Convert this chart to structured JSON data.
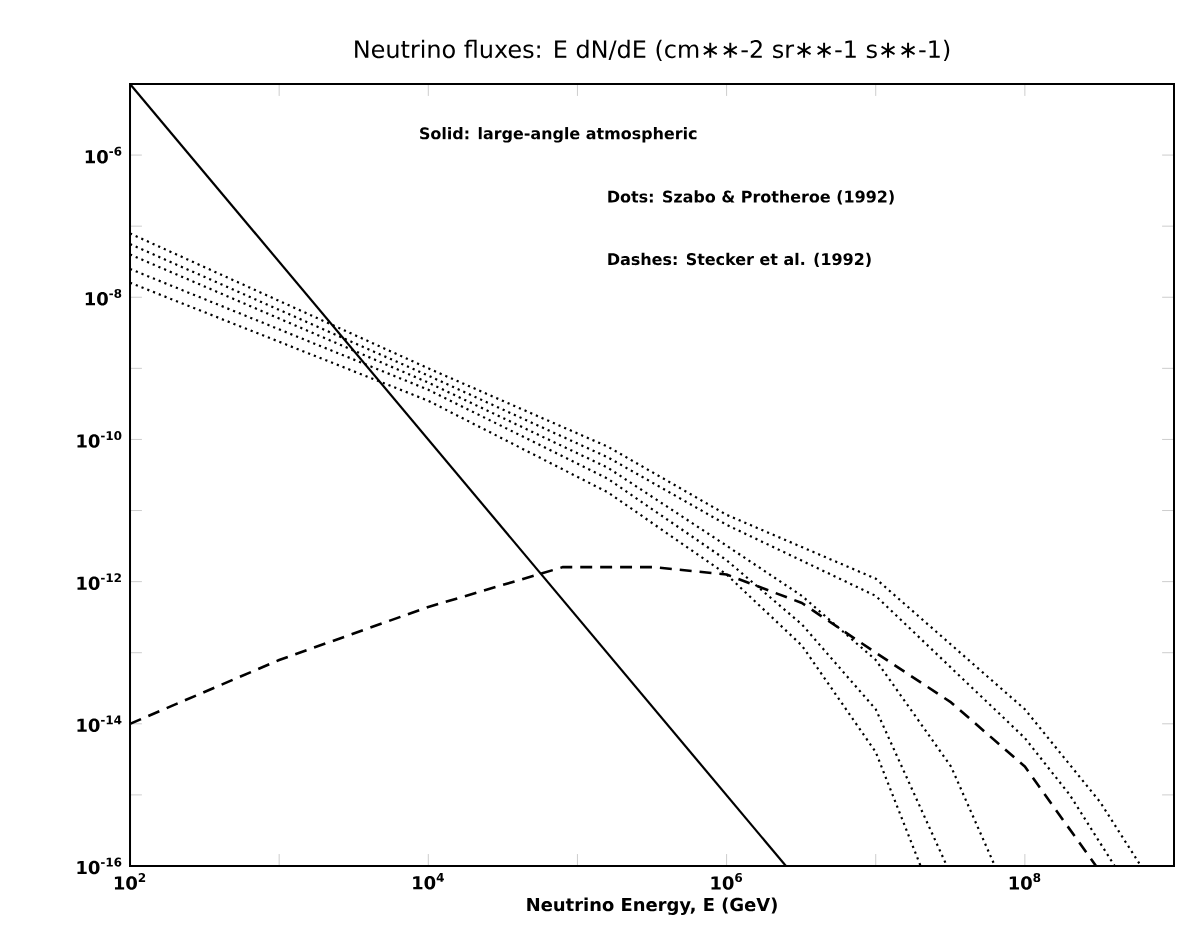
{
  "chart_data": {
    "type": "line",
    "title": "Neutrino fluxes: E dN/dE (cm∗∗-2 sr∗∗-1 s∗∗-1)",
    "xlabel": "Neutrino Energy, E (GeV)",
    "log": "xy",
    "grid": false,
    "marker": "none",
    "xlim": [
      100,
      1000000000
    ],
    "ylim": [
      1e-16,
      1e-05
    ],
    "xticks": [
      {
        "value": 100,
        "label": "10$^{2}$"
      },
      {
        "value": 1000,
        "label": null
      },
      {
        "value": 10000,
        "label": "10$^{4}$"
      },
      {
        "value": 100000,
        "label": null
      },
      {
        "value": 1000000,
        "label": "10$^{6}$"
      },
      {
        "value": 10000000,
        "label": null
      },
      {
        "value": 100000000,
        "label": "10$^{8}$"
      }
    ],
    "yticks": [
      {
        "value": 1e-16,
        "label": "10$^{-16}$"
      },
      {
        "value": 1e-15,
        "label": null
      },
      {
        "value": 1e-14,
        "label": "10$^{-14}$"
      },
      {
        "value": 1e-13,
        "label": null
      },
      {
        "value": 1e-12,
        "label": "10$^{-12}$"
      },
      {
        "value": 1e-11,
        "label": null
      },
      {
        "value": 1e-10,
        "label": "10$^{-10}$"
      },
      {
        "value": 1e-09,
        "label": null
      },
      {
        "value": 1e-08,
        "label": "10$^{-8}$"
      },
      {
        "value": 1e-07,
        "label": null
      },
      {
        "value": 1e-06,
        "label": "10$^{-6}$"
      }
    ],
    "annotations": [
      "Solid: large-angle atmospheric",
      "Dots: Szabo & Protheroe (1992)",
      "Dashes: Stecker et al. (1992)"
    ],
    "series": [
      {
        "color": "#000000",
        "line_style": "solid",
        "x": [
          100,
          2500000
        ],
        "values": [
          1e-05,
          1e-16
        ]
      },
      {
        "color": "#000000",
        "line_style": "dotted",
        "x": [
          100,
          10000,
          160000,
          1000000,
          10000000,
          100000000,
          320000000,
          600000000
        ],
        "values": [
          7.9e-08,
          1e-09,
          7.9e-11,
          8.7e-12,
          1.1e-12,
          1.6e-14,
          7.9e-16,
          1e-16
        ]
      },
      {
        "color": "#000000",
        "line_style": "dotted",
        "x": [
          100,
          10000,
          160000,
          1000000,
          10000000,
          100000000,
          200000000,
          400000000
        ],
        "values": [
          5.6e-08,
          7.9e-10,
          5.6e-11,
          6.3e-12,
          6.3e-13,
          6.3e-15,
          1e-15,
          1e-16
        ]
      },
      {
        "color": "#000000",
        "line_style": "dotted",
        "x": [
          100,
          10000,
          160000,
          1000000,
          3200000,
          10000000,
          32000000,
          63000000
        ],
        "values": [
          4e-08,
          6.3e-10,
          4e-11,
          3.2e-12,
          6.3e-13,
          7.9e-14,
          2.5e-15,
          1e-16
        ]
      },
      {
        "color": "#000000",
        "line_style": "dotted",
        "x": [
          100,
          10000,
          160000,
          1000000,
          3200000,
          10000000,
          30000000
        ],
        "values": [
          2.5e-08,
          5e-10,
          2.8e-11,
          2e-12,
          2.5e-13,
          1.6e-14,
          1e-16
        ]
      },
      {
        "color": "#000000",
        "line_style": "dotted",
        "x": [
          100,
          10000,
          160000,
          1000000,
          3200000,
          10000000,
          20000000
        ],
        "values": [
          1.6e-08,
          3.5e-10,
          1.8e-11,
          1.26e-12,
          1.26e-13,
          4e-15,
          1e-16
        ]
      },
      {
        "color": "#000000",
        "line_style": "dashed",
        "x": [
          100,
          1000,
          10000,
          80000,
          320000,
          1000000,
          3200000,
          10000000,
          32000000,
          100000000,
          300000000
        ],
        "values": [
          1e-14,
          7.9e-14,
          4.4e-13,
          1.6e-12,
          1.6e-12,
          1.26e-12,
          5e-13,
          1e-13,
          2e-14,
          2.5e-15,
          1e-16
        ]
      }
    ]
  }
}
